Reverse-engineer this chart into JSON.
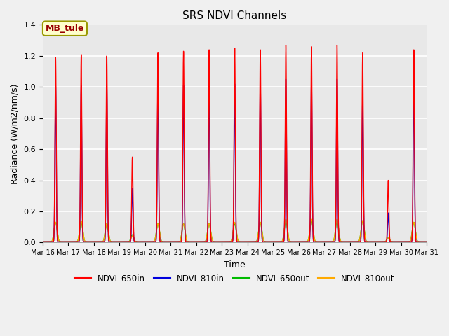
{
  "title": "SRS NDVI Channels",
  "xlabel": "Time",
  "ylabel": "Radiance (W/m2/nm/s)",
  "ylim": [
    0,
    1.4
  ],
  "annotation": "MB_tule",
  "legend": [
    "NDVI_650in",
    "NDVI_810in",
    "NDVI_650out",
    "NDVI_810out"
  ],
  "colors": {
    "NDVI_650in": "#ff0000",
    "NDVI_810in": "#0000dd",
    "NDVI_650out": "#00bb00",
    "NDVI_810out": "#ffaa00"
  },
  "background_color": "#f0f0f0",
  "axes_facecolor": "#e8e8e8",
  "grid_color": "#ffffff",
  "day_peaks": {
    "16": {
      "650in": 1.19,
      "810in": 1.01,
      "650out": 0.13,
      "810out": 0.13
    },
    "17": {
      "650in": 1.21,
      "810in": 1.01,
      "650out": 0.13,
      "810out": 0.14
    },
    "18": {
      "650in": 1.2,
      "810in": 1.0,
      "650out": 0.12,
      "810out": 0.12
    },
    "19": {
      "650in": 0.55,
      "810in": 0.35,
      "650out": 0.05,
      "810out": 0.04
    },
    "20": {
      "650in": 1.22,
      "810in": 1.03,
      "650out": 0.12,
      "810out": 0.12
    },
    "21": {
      "650in": 1.23,
      "810in": 1.01,
      "650out": 0.12,
      "810out": 0.12
    },
    "22": {
      "650in": 1.24,
      "810in": 1.02,
      "650out": 0.12,
      "810out": 0.12
    },
    "23": {
      "650in": 1.25,
      "810in": 1.02,
      "650out": 0.12,
      "810out": 0.13
    },
    "24": {
      "650in": 1.24,
      "810in": 1.02,
      "650out": 0.13,
      "810out": 0.13
    },
    "25": {
      "650in": 1.27,
      "810in": 1.05,
      "650out": 0.14,
      "810out": 0.15
    },
    "26": {
      "650in": 1.26,
      "810in": 1.05,
      "650out": 0.14,
      "810out": 0.15
    },
    "27": {
      "650in": 1.27,
      "810in": 1.05,
      "650out": 0.14,
      "810out": 0.15
    },
    "28": {
      "650in": 1.22,
      "810in": 0.91,
      "650out": 0.14,
      "810out": 0.14
    },
    "29": {
      "650in": 0.4,
      "810in": 0.19,
      "650out": 0.03,
      "810out": 0.03
    },
    "30": {
      "650in": 1.24,
      "810in": 1.04,
      "650out": 0.13,
      "810out": 0.13
    }
  },
  "tick_labels": [
    "Mar 16",
    "Mar 17",
    "Mar 18",
    "Mar 19",
    "Mar 20",
    "Mar 21",
    "Mar 22",
    "Mar 23",
    "Mar 24",
    "Mar 25",
    "Mar 26",
    "Mar 27",
    "Mar 28",
    "Mar 29",
    "Mar 30",
    "Mar 31"
  ]
}
